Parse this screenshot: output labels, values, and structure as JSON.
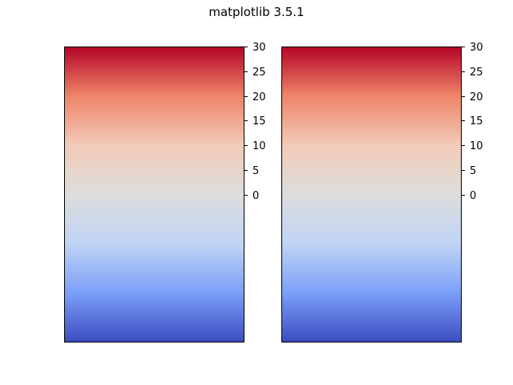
{
  "figure": {
    "title": "matplotlib 3.5.1"
  },
  "chart_data": [
    {
      "type": "heatmap",
      "title": "",
      "colormap": "coolwarm",
      "colormap_stops": [
        "#3b4cc0",
        "#7b9ff9",
        "#c0d4f5",
        "#dddddd",
        "#f2cbb7",
        "#ee8468",
        "#b40426"
      ],
      "value_range": [
        -30,
        30
      ],
      "yaxis_position": "right",
      "ylim": [
        -30,
        30
      ],
      "yticks": [
        0,
        5,
        10,
        15,
        20,
        25,
        30
      ],
      "ytick_labels": [
        "0",
        "5",
        "10",
        "15",
        "20",
        "25",
        "30"
      ],
      "grid": false,
      "xticks": []
    },
    {
      "type": "heatmap",
      "title": "",
      "colormap": "coolwarm",
      "colormap_stops": [
        "#3b4cc0",
        "#7b9ff9",
        "#c0d4f5",
        "#dddddd",
        "#f2cbb7",
        "#ee8468",
        "#b40426"
      ],
      "value_range": [
        -30,
        30
      ],
      "yaxis_position": "right",
      "ylim": [
        -30,
        30
      ],
      "yticks": [
        0,
        5,
        10,
        15,
        20,
        25,
        30
      ],
      "ytick_labels": [
        "0",
        "5",
        "10",
        "15",
        "20",
        "25",
        "30"
      ],
      "grid": false,
      "xticks": []
    }
  ]
}
